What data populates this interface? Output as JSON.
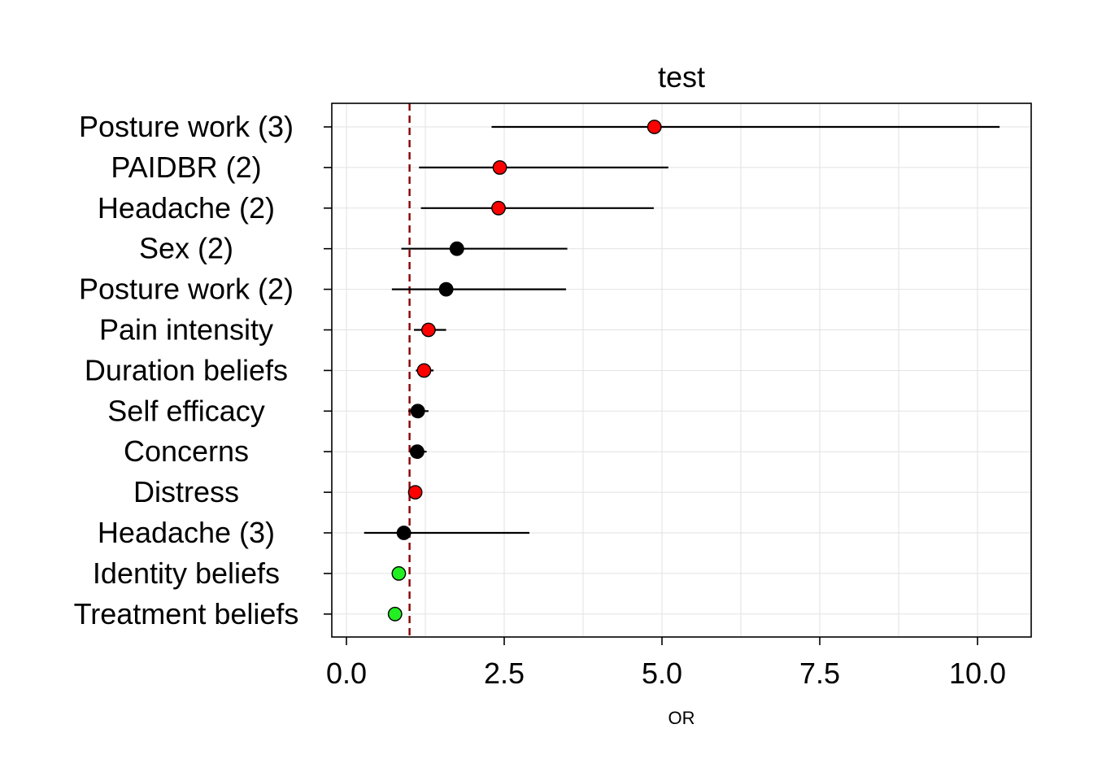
{
  "chart_data": {
    "type": "scatter",
    "subtype": "forest-plot",
    "title": "test",
    "xlabel": "OR",
    "ylabel": "",
    "xlim": [
      -0.05,
      10.8
    ],
    "x_ticks": [
      "0.0",
      "2.5",
      "5.0",
      "7.5",
      "10.0"
    ],
    "x_tick_values": [
      0,
      2.5,
      5,
      7.5,
      10
    ],
    "reference_line": 1,
    "reference_line_color": "#8b0000",
    "grid": true,
    "colors": {
      "red": "#ff0000",
      "black": "#000000",
      "green": "#22ee22"
    },
    "rows": [
      {
        "label": "Posture work (3)",
        "or": 4.88,
        "lower": 2.3,
        "upper": 10.35,
        "color": "red"
      },
      {
        "label": "PAIDBR (2)",
        "or": 2.43,
        "lower": 1.15,
        "upper": 5.1,
        "color": "red"
      },
      {
        "label": "Headache (2)",
        "or": 2.41,
        "lower": 1.18,
        "upper": 4.87,
        "color": "red"
      },
      {
        "label": "Sex (2)",
        "or": 1.75,
        "lower": 0.87,
        "upper": 3.5,
        "color": "black"
      },
      {
        "label": "Posture work (2)",
        "or": 1.58,
        "lower": 0.72,
        "upper": 3.48,
        "color": "black"
      },
      {
        "label": "Pain intensity",
        "or": 1.3,
        "lower": 1.07,
        "upper": 1.58,
        "color": "red"
      },
      {
        "label": "Duration beliefs",
        "or": 1.23,
        "lower": 1.1,
        "upper": 1.38,
        "color": "red"
      },
      {
        "label": "Self efficacy",
        "or": 1.13,
        "lower": 0.98,
        "upper": 1.3,
        "color": "black"
      },
      {
        "label": "Concerns",
        "or": 1.12,
        "lower": 1.0,
        "upper": 1.27,
        "color": "black"
      },
      {
        "label": "Distress",
        "or": 1.09,
        "lower": 1.03,
        "upper": 1.16,
        "color": "red"
      },
      {
        "label": "Headache (3)",
        "or": 0.91,
        "lower": 0.28,
        "upper": 2.9,
        "color": "black"
      },
      {
        "label": "Identity beliefs",
        "or": 0.83,
        "lower": 0.78,
        "upper": 0.9,
        "color": "green"
      },
      {
        "label": "Treatment beliefs",
        "or": 0.77,
        "lower": 0.7,
        "upper": 0.85,
        "color": "green"
      }
    ]
  }
}
